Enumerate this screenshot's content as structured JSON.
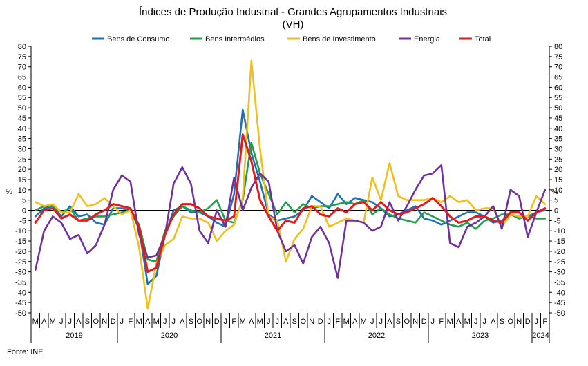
{
  "chart_data": {
    "type": "line",
    "title": "Índices de Produção Industrial - Grandes Agrupamentos Industriais",
    "subtitle": "(VH)",
    "ylabel_left": "%",
    "ylabel_right": "%",
    "ylim": [
      -50,
      80
    ],
    "ytick_step": 5,
    "grid": false,
    "legend_position": "top",
    "source": "Fonte: INE",
    "years": [
      {
        "label": "2019",
        "start": 0,
        "count": 10
      },
      {
        "label": "2020",
        "start": 10,
        "count": 12
      },
      {
        "label": "2021",
        "start": 22,
        "count": 12
      },
      {
        "label": "2022",
        "start": 34,
        "count": 12
      },
      {
        "label": "2023",
        "start": 46,
        "count": 12
      },
      {
        "label": "2024",
        "start": 58,
        "count": 2
      }
    ],
    "categories": [
      "M",
      "A",
      "M",
      "J",
      "J",
      "A",
      "S",
      "O",
      "N",
      "D",
      "J",
      "F",
      "M",
      "A",
      "M",
      "J",
      "J",
      "A",
      "S",
      "O",
      "N",
      "D",
      "J",
      "F",
      "M",
      "A",
      "M",
      "J",
      "J",
      "A",
      "S",
      "O",
      "N",
      "D",
      "J",
      "F",
      "M",
      "A",
      "M",
      "J",
      "J",
      "A",
      "S",
      "O",
      "N",
      "D",
      "J",
      "F",
      "M",
      "A",
      "M",
      "J",
      "J",
      "A",
      "S",
      "O",
      "N",
      "D",
      "J",
      "F"
    ],
    "series": [
      {
        "name": "Bens de Consumo",
        "color": "#1f6fb4",
        "values": [
          -3,
          1,
          2,
          -3,
          2,
          -3,
          -2,
          -6,
          -7,
          1,
          1,
          0,
          -9,
          -36,
          -32,
          -12,
          0,
          2,
          -1,
          -1,
          -3,
          -6,
          -8,
          8,
          49,
          28,
          14,
          -2,
          -5,
          -4,
          -3,
          0,
          7,
          4,
          1,
          8,
          3,
          6,
          5,
          4,
          1,
          -3,
          -2,
          0,
          2,
          -4,
          -5,
          -7,
          -5,
          -3,
          -1,
          -1,
          -3,
          -6,
          -5,
          -2,
          -3,
          -3,
          -1,
          0
        ]
      },
      {
        "name": "Bens Intermédios",
        "color": "#1ea04b",
        "values": [
          0,
          2,
          2,
          -1,
          1,
          -5,
          -4,
          -3,
          -3,
          -2,
          -1,
          0,
          -7,
          -24,
          -25,
          -10,
          -3,
          2,
          0,
          -1,
          1,
          5,
          -5,
          -6,
          5,
          33,
          18,
          8,
          -2,
          4,
          -1,
          3,
          1,
          2,
          2,
          3,
          4,
          3,
          5,
          -2,
          1,
          -2,
          -4,
          -5,
          -6,
          -1,
          -3,
          -5,
          -7,
          -8,
          -6,
          -9,
          -5,
          -4,
          -2,
          -2,
          -4,
          -3,
          -4,
          -4
        ]
      },
      {
        "name": "Bens de Investimento",
        "color": "#f2be1b",
        "values": [
          4,
          2,
          3,
          -1,
          -1,
          8,
          2,
          3,
          6,
          2,
          -2,
          0,
          -18,
          -48,
          -26,
          -17,
          -14,
          -3,
          -4,
          -4,
          -6,
          -15,
          -10,
          -7,
          6,
          73,
          30,
          -3,
          -5,
          -25,
          -14,
          -9,
          2,
          2,
          -8,
          -6,
          -4,
          -5,
          -6,
          16,
          5,
          23,
          7,
          5,
          5,
          5,
          6,
          4,
          7,
          4,
          5,
          0,
          1,
          1,
          -8,
          -2,
          -3,
          -3,
          7,
          3
        ]
      },
      {
        "name": "Energia",
        "color": "#7030a0",
        "values": [
          -29,
          -10,
          -3,
          -6,
          -14,
          -12,
          -21,
          -17,
          -7,
          10,
          17,
          14,
          -12,
          -23,
          -22,
          -12,
          13,
          21,
          13,
          -10,
          -16,
          0,
          -8,
          16,
          0,
          11,
          18,
          14,
          -10,
          -20,
          -17,
          -26,
          -13,
          -8,
          -16,
          -33,
          -5,
          -5,
          -6,
          -10,
          -8,
          4,
          -5,
          2,
          10,
          17,
          18,
          22,
          -16,
          -18,
          -8,
          -6,
          -3,
          2,
          -9,
          10,
          7,
          -13,
          -1,
          10
        ]
      },
      {
        "name": "Total",
        "color": "#e31a1c",
        "values": [
          -6,
          0,
          1,
          -4,
          -2,
          -5,
          -5,
          -2,
          0,
          3,
          2,
          1,
          -8,
          -30,
          -28,
          -12,
          -2,
          3,
          3,
          1,
          -3,
          -4,
          -5,
          -3,
          37,
          24,
          5,
          -3,
          -10,
          -5,
          -6,
          1,
          2,
          -2,
          -3,
          1,
          -1,
          3,
          4,
          0,
          4,
          0,
          -2,
          -1,
          1,
          3,
          6,
          2,
          -3,
          -6,
          -5,
          -3,
          -3,
          -5,
          -6,
          -1,
          -1,
          -5,
          -1,
          1
        ]
      }
    ]
  }
}
